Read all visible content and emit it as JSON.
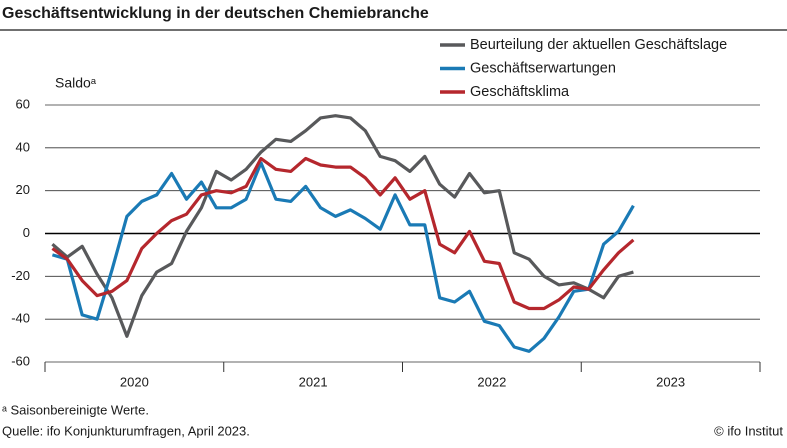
{
  "chart_data": {
    "type": "line",
    "title": "Geschäftsentwicklung in der deutschen Chemiebranche",
    "y_label": "Saldoᵃ",
    "categories": [
      "2020",
      null,
      null,
      null,
      null,
      null,
      null,
      null,
      null,
      null,
      null,
      null,
      "2021",
      null,
      null,
      null,
      null,
      null,
      null,
      null,
      null,
      null,
      null,
      null,
      "2022",
      null,
      null,
      null,
      null,
      null,
      null,
      null,
      null,
      null,
      null,
      null,
      "2023",
      null,
      null,
      null
    ],
    "series": [
      {
        "name": "Beurteilung der aktuellen Geschäftslage",
        "color": "#58595b",
        "values": [
          -5,
          -11,
          -6,
          -19,
          -30,
          -48,
          -29,
          -18,
          -14,
          1,
          12,
          29,
          25,
          30,
          38,
          44,
          43,
          48,
          54,
          55,
          54,
          48,
          36,
          34,
          29,
          36,
          23,
          17,
          28,
          19,
          20,
          -9,
          -12,
          -20,
          -24,
          -23,
          -26,
          -30,
          -20,
          -18
        ]
      },
      {
        "name": "Geschäftserwartungen",
        "color": "#1a7ab5",
        "values": [
          -10,
          -12,
          -38,
          -40,
          -17,
          8,
          15,
          18,
          28,
          16,
          24,
          12,
          12,
          16,
          33,
          16,
          15,
          22,
          12,
          8,
          11,
          7,
          2,
          18,
          4,
          4,
          -30,
          -32,
          -27,
          -41,
          -43,
          -53,
          -55,
          -49,
          -39,
          -27,
          -26,
          -5,
          1,
          13
        ]
      },
      {
        "name": "Geschäftsklima",
        "color": "#b5272d",
        "values": [
          -7,
          -12,
          -22,
          -29,
          -27,
          -22,
          -7,
          0,
          6,
          9,
          18,
          20,
          19,
          22,
          35,
          30,
          29,
          35,
          32,
          31,
          31,
          26,
          18,
          26,
          16,
          20,
          -5,
          -9,
          1,
          -13,
          -14,
          -32,
          -35,
          -35,
          -31,
          -25,
          -26,
          -17,
          -9,
          -3
        ]
      }
    ],
    "ylim": [
      -60,
      60
    ],
    "yticks": [
      -60,
      -40,
      -20,
      0,
      20,
      40,
      60
    ],
    "grid": true
  },
  "notes": {
    "footnote": "ᵃ Saisonbereinigte Werte.",
    "source": "Quelle: ifo Konjunkturumfragen, April 2023.",
    "credit": "© ifo Institut"
  }
}
